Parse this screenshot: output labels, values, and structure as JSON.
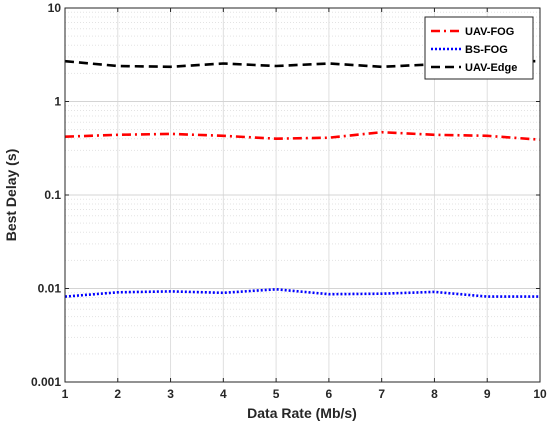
{
  "chart_data": {
    "type": "line",
    "title": "",
    "xlabel": "Data Rate (Mb/s)",
    "ylabel": "Best Delay (s)",
    "x": [
      1,
      2,
      3,
      4,
      5,
      6,
      7,
      8,
      9,
      10
    ],
    "xlim": [
      1,
      10
    ],
    "ylim": [
      0.001,
      10
    ],
    "yscale": "log",
    "grid": true,
    "legend_position": "top-right",
    "x_ticks": [
      "1",
      "2",
      "3",
      "4",
      "5",
      "6",
      "7",
      "8",
      "9",
      "10"
    ],
    "y_ticks": [
      {
        "value": 0.001,
        "label": "0.001"
      },
      {
        "value": 0.01,
        "label": "0.01"
      },
      {
        "value": 0.1,
        "label": "0.1"
      },
      {
        "value": 1,
        "label": "1"
      },
      {
        "value": 10,
        "label": "10"
      }
    ],
    "series": [
      {
        "name": "UAV-FOG",
        "color": "#ff0000",
        "dash": "dashdot",
        "values": [
          0.42,
          0.44,
          0.45,
          0.43,
          0.4,
          0.41,
          0.47,
          0.44,
          0.43,
          0.39
        ]
      },
      {
        "name": "BS-FOG",
        "color": "#0000ff",
        "dash": "dotted",
        "values": [
          0.0082,
          0.0091,
          0.0093,
          0.009,
          0.0098,
          0.0087,
          0.0088,
          0.0092,
          0.0082,
          0.0082
        ]
      },
      {
        "name": "UAV-Edge",
        "color": "#000000",
        "dash": "dashed",
        "values": [
          2.7,
          2.4,
          2.35,
          2.55,
          2.4,
          2.55,
          2.35,
          2.5,
          2.7,
          2.7
        ]
      }
    ]
  }
}
